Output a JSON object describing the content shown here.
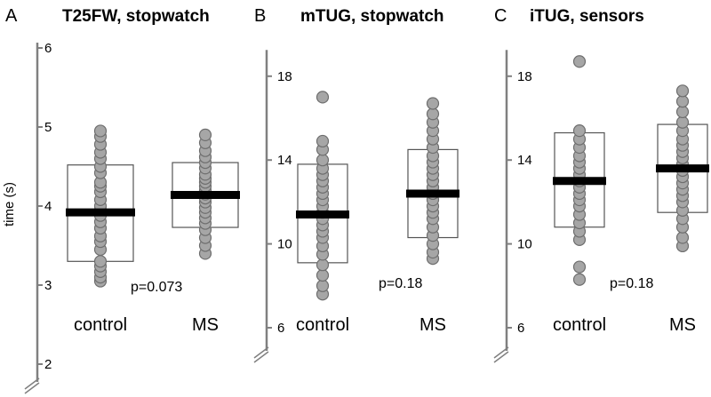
{
  "chart_data": [
    {
      "type": "scatter",
      "panel_letter": "A",
      "title": "T25FW, stopwatch",
      "ylabel": "time (s)",
      "ylim": [
        2,
        6
      ],
      "yticks": [
        2,
        3,
        4,
        5,
        6
      ],
      "categories": [
        "control",
        "MS"
      ],
      "pvalue_label": "p=0.073",
      "groups": [
        {
          "name": "control",
          "mean": 3.92,
          "box": [
            3.3,
            4.52
          ],
          "values": [
            3.05,
            3.1,
            3.17,
            3.24,
            3.3,
            3.45,
            3.55,
            3.62,
            3.72,
            3.8,
            3.88,
            3.95,
            4.0,
            4.08,
            4.18,
            4.25,
            4.3,
            4.42,
            4.5,
            4.6,
            4.68,
            4.78,
            4.88,
            4.95
          ]
        },
        {
          "name": "MS",
          "mean": 4.14,
          "box": [
            3.73,
            4.55
          ],
          "values": [
            3.4,
            3.5,
            3.6,
            3.7,
            3.78,
            3.85,
            3.92,
            3.98,
            4.05,
            4.1,
            4.15,
            4.2,
            4.25,
            4.3,
            4.35,
            4.4,
            4.48,
            4.55,
            4.62,
            4.7,
            4.8,
            4.9
          ]
        }
      ]
    },
    {
      "type": "scatter",
      "panel_letter": "B",
      "title": "mTUG, stopwatch",
      "ylim": [
        6,
        19
      ],
      "yticks": [
        6,
        10,
        14,
        18
      ],
      "categories": [
        "control",
        "MS"
      ],
      "pvalue_label": "p=0.18",
      "groups": [
        {
          "name": "control",
          "mean": 11.4,
          "box": [
            9.1,
            13.8
          ],
          "values": [
            7.6,
            8.0,
            8.5,
            9.0,
            9.5,
            9.9,
            10.3,
            10.6,
            10.9,
            11.2,
            11.5,
            11.8,
            12.1,
            12.4,
            12.7,
            13.0,
            13.3,
            13.6,
            14.0,
            14.5,
            14.9,
            17.0
          ]
        },
        {
          "name": "MS",
          "mean": 12.4,
          "box": [
            10.3,
            14.5
          ],
          "values": [
            9.3,
            9.6,
            10.0,
            10.4,
            10.8,
            11.2,
            11.5,
            11.8,
            12.1,
            12.4,
            12.7,
            13.0,
            13.3,
            13.6,
            13.9,
            14.2,
            14.6,
            15.0,
            15.4,
            15.8,
            16.2,
            16.7
          ]
        }
      ]
    },
    {
      "type": "scatter",
      "panel_letter": "C",
      "title": "iTUG, sensors",
      "ylim": [
        6,
        19
      ],
      "yticks": [
        6,
        10,
        14,
        18
      ],
      "categories": [
        "control",
        "MS"
      ],
      "pvalue_label": "p=0.18",
      "groups": [
        {
          "name": "control",
          "mean": 13.0,
          "box": [
            10.8,
            15.3
          ],
          "values": [
            8.3,
            8.9,
            10.2,
            10.6,
            11.0,
            11.4,
            11.8,
            12.1,
            12.4,
            12.7,
            13.0,
            13.3,
            13.6,
            13.9,
            14.2,
            14.6,
            15.0,
            15.4,
            18.7
          ]
        },
        {
          "name": "MS",
          "mean": 13.6,
          "box": [
            11.5,
            15.7
          ],
          "values": [
            9.9,
            10.3,
            10.8,
            11.2,
            11.6,
            12.0,
            12.3,
            12.6,
            12.9,
            13.2,
            13.5,
            13.8,
            14.1,
            14.4,
            14.7,
            15.0,
            15.4,
            15.8,
            16.3,
            16.8,
            17.3
          ]
        }
      ]
    }
  ]
}
